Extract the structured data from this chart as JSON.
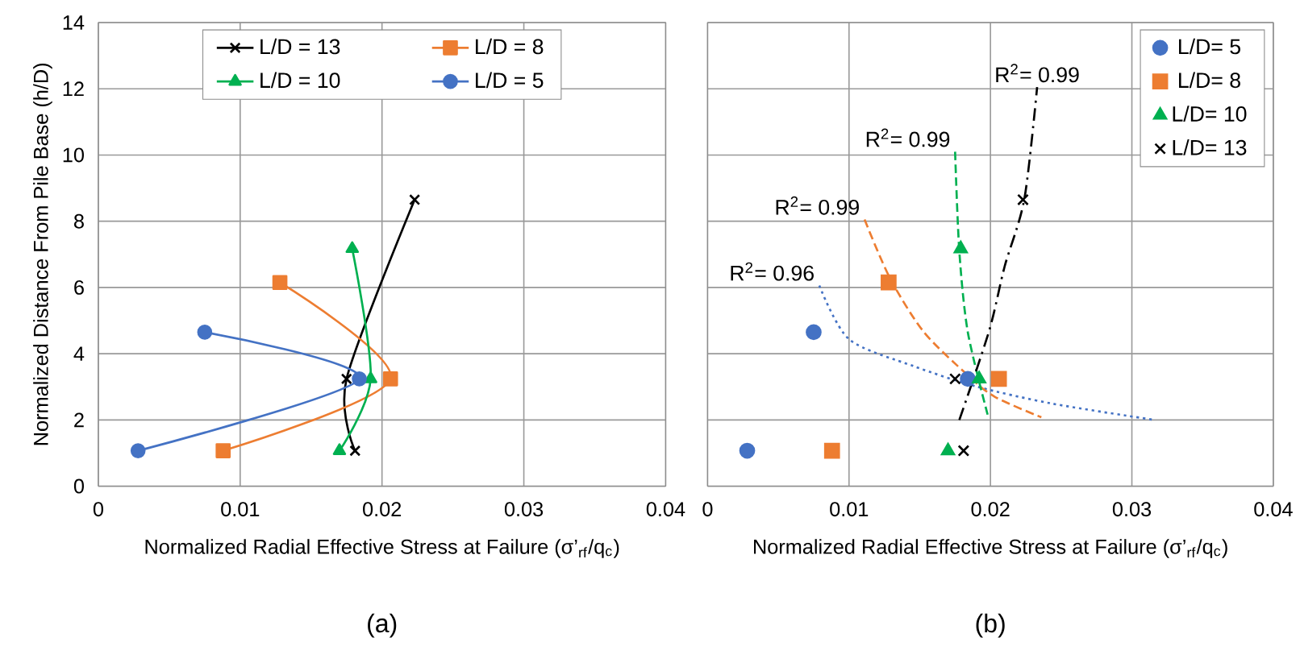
{
  "chart_data": [
    {
      "type": "line",
      "title": "(a)",
      "xlabel": "Normalized Radial Effective Stress at Failure (σ’$_{rf}$/q$_{c}$)",
      "ylabel": "Normalized Distance From Pile Base (h/D)",
      "xlim": [
        0,
        0.04
      ],
      "ylim": [
        0,
        14
      ],
      "xticks": [
        0,
        0.01,
        0.02,
        0.03,
        0.04
      ],
      "yticks": [
        0,
        2,
        4,
        6,
        8,
        10,
        12,
        14
      ],
      "grid": true,
      "legend": "top",
      "series": [
        {
          "name": "L/D = 13",
          "color": "#000000",
          "marker": "cross",
          "x": [
            0.0181,
            0.0175,
            0.0223
          ],
          "values": [
            1.07,
            3.24,
            8.65
          ]
        },
        {
          "name": "L/D = 8",
          "color": "#ed7d31",
          "marker": "square",
          "x": [
            0.0088,
            0.0206,
            0.0128
          ],
          "values": [
            1.07,
            3.24,
            6.15
          ]
        },
        {
          "name": "L/D = 10",
          "color": "#00b050",
          "marker": "triangle",
          "x": [
            0.017,
            0.0192,
            0.0179
          ],
          "values": [
            1.07,
            3.24,
            7.17
          ]
        },
        {
          "name": "L/D = 5",
          "color": "#4472c4",
          "marker": "circle",
          "x": [
            0.0028,
            0.0184,
            0.0075
          ],
          "values": [
            1.07,
            3.24,
            4.65
          ]
        }
      ]
    },
    {
      "type": "scatter",
      "title": "(b)",
      "xlabel": "Normalized Radial Effective Stress at Failure (σ’$_{rf}$/q$_{c}$)",
      "xlim": [
        0,
        0.04
      ],
      "ylim": [
        0,
        14
      ],
      "xticks": [
        0,
        0.01,
        0.02,
        0.03,
        0.04
      ],
      "yticks": [
        0,
        2,
        4,
        6,
        8,
        10,
        12,
        14
      ],
      "grid": true,
      "legend": "top right",
      "tick_labels": "x",
      "series": [
        {
          "name": "L/D= 5",
          "color": "#4472c4",
          "marker": "circle",
          "x": [
            0.0028,
            0.0184,
            0.0075
          ],
          "values": [
            1.07,
            3.24,
            4.65
          ]
        },
        {
          "name": "L/D= 8",
          "color": "#ed7d31",
          "marker": "square",
          "x": [
            0.0088,
            0.0206,
            0.0128
          ],
          "values": [
            1.07,
            3.24,
            6.15
          ]
        },
        {
          "name": "L/D= 10",
          "color": "#00b050",
          "marker": "triangle",
          "x": [
            0.017,
            0.0192,
            0.0179
          ],
          "values": [
            1.07,
            3.24,
            7.17
          ]
        },
        {
          "name": "L/D= 13",
          "color": "#000000",
          "marker": "cross",
          "x": [
            0.0181,
            0.0175,
            0.0223
          ],
          "values": [
            1.07,
            3.24,
            8.65
          ]
        },
        {
          "type": "line",
          "color": "#4472c4",
          "line_style": "dotted",
          "x": [
            0.0079,
            0.01,
            0.0146,
            0.0191,
            0.0244,
            0.0316
          ],
          "values": [
            6.06,
            4.44,
            3.62,
            3.0,
            2.49,
            2.0
          ]
        },
        {
          "type": "line",
          "color": "#ed7d31",
          "line_style": "dashed",
          "x": [
            0.0111,
            0.0129,
            0.0153,
            0.0184,
            0.0203,
            0.0236
          ],
          "values": [
            8.05,
            6.28,
            4.65,
            3.35,
            2.7,
            2.08
          ]
        },
        {
          "type": "line",
          "color": "#00b050",
          "line_style": "dashed",
          "x": [
            0.0175,
            0.0178,
            0.0184,
            0.0198
          ],
          "values": [
            10.1,
            7.09,
            4.65,
            2.16
          ]
        },
        {
          "type": "line",
          "color": "#000000",
          "line_style": "dashdot",
          "x": [
            0.0178,
            0.0199,
            0.021,
            0.0224,
            0.0233
          ],
          "values": [
            2.0,
            4.68,
            6.63,
            8.68,
            12.05
          ]
        }
      ],
      "annotations": [
        {
          "text": "R$^{2}$= 0.96",
          "x": 0.0079,
          "y": 6.06
        },
        {
          "text": "R$^{2}$= 0.99",
          "x": 0.0111,
          "y": 8.05
        },
        {
          "text": "R$^{2}$= 0.99",
          "x": 0.0175,
          "y": 10.1
        },
        {
          "text": "R$^{2}$= 0.99",
          "x": 0.0233,
          "y": 12.05
        }
      ]
    }
  ]
}
